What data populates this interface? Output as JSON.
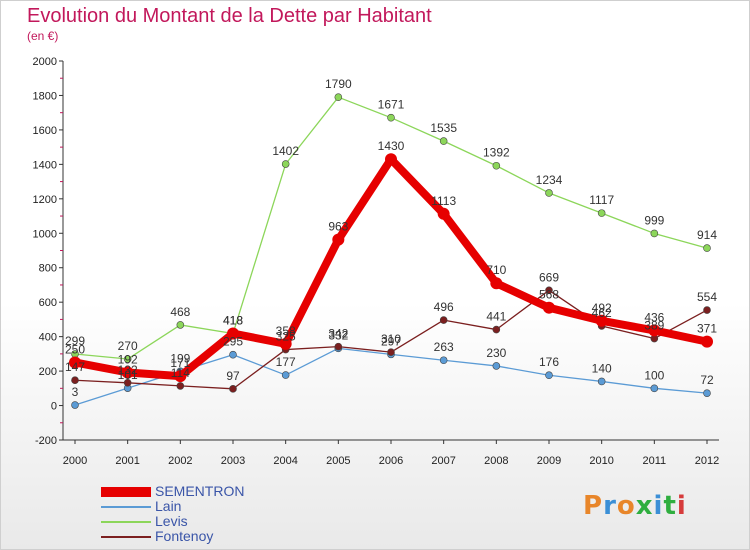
{
  "title": "Evolution du Montant de la Dette par Habitant",
  "subtitle": "(en €)",
  "logo": "Proxiti",
  "chart_data": {
    "type": "line",
    "x": [
      "2000",
      "2001",
      "2002",
      "2003",
      "2004",
      "2005",
      "2006",
      "2007",
      "2008",
      "2009",
      "2010",
      "2011",
      "2012"
    ],
    "ylim": [
      -200,
      2000
    ],
    "yticks": [
      -200,
      0,
      200,
      400,
      600,
      800,
      1000,
      1200,
      1400,
      1600,
      1800,
      2000
    ],
    "grid": false,
    "legend_position": "bottom-left",
    "series": [
      {
        "name": "SEMENTRON",
        "color": "#e60000",
        "values": [
          250,
          192,
          171,
          418,
          358,
          963,
          1430,
          1113,
          710,
          568,
          492,
          436,
          371
        ]
      },
      {
        "name": "Lain",
        "color": "#5b9bd5",
        "values": [
          3,
          101,
          199,
          295,
          177,
          332,
          297,
          263,
          230,
          176,
          140,
          100,
          72
        ]
      },
      {
        "name": "Levis",
        "color": "#8cd65a",
        "values": [
          299,
          270,
          468,
          418,
          1402,
          1790,
          1671,
          1535,
          1392,
          1234,
          1117,
          999,
          914
        ]
      },
      {
        "name": "Fontenoy",
        "color": "#7b1f1f",
        "values": [
          147,
          132,
          114,
          97,
          325,
          342,
          310,
          496,
          441,
          669,
          462,
          389,
          554
        ]
      }
    ]
  }
}
